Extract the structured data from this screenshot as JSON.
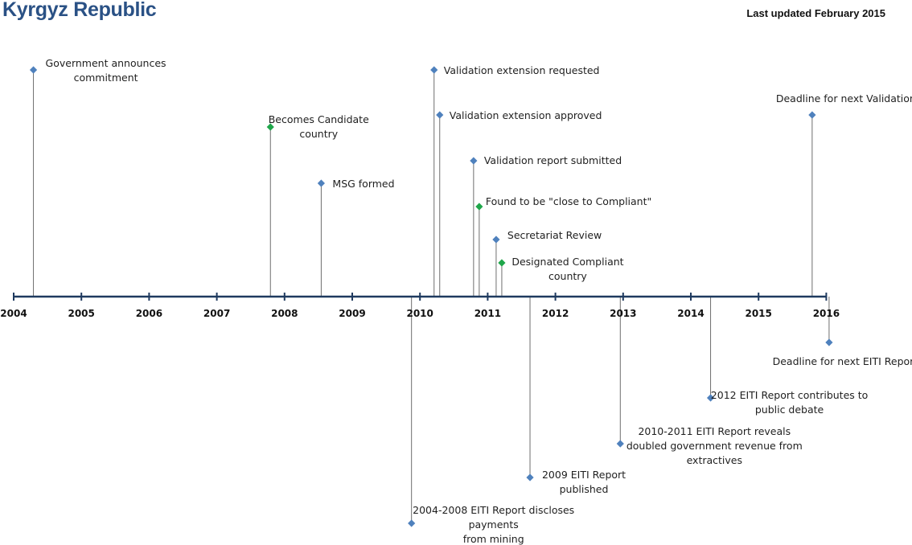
{
  "title": "Kyrgyz Republic",
  "last_updated": "Last updated February 2015",
  "colors": {
    "axis": "#1f3a5f",
    "stem": "#6e6e6e",
    "standard_event": "#4f81bd",
    "status_event": "#1fa64a",
    "title": "#2a5185"
  },
  "axis": {
    "years": [
      "2004",
      "2005",
      "2006",
      "2007",
      "2008",
      "2009",
      "2010",
      "2011",
      "2012",
      "2013",
      "2014",
      "2015",
      "2016"
    ]
  },
  "events": [
    {
      "id": "gov-commitment",
      "date": "2004-04",
      "side": "above",
      "level": 1,
      "kind": "standard",
      "label": [
        "Government announces",
        "commitment"
      ]
    },
    {
      "id": "candidate",
      "date": "2007-10",
      "side": "above",
      "level": 3,
      "kind": "status",
      "label": [
        "Becomes Candidate",
        "country"
      ]
    },
    {
      "id": "msg-formed",
      "date": "2008-07",
      "side": "above",
      "level": 5,
      "kind": "standard",
      "label": [
        "MSG formed"
      ]
    },
    {
      "id": "validation-ext-requested",
      "date": "2010-03",
      "side": "above",
      "level": 1,
      "kind": "standard",
      "label": [
        "Validation extension requested"
      ]
    },
    {
      "id": "validation-ext-approved",
      "date": "2010-04",
      "side": "above",
      "level": 2,
      "kind": "standard",
      "label": [
        "Validation extension approved"
      ]
    },
    {
      "id": "validation-report",
      "date": "2010-10",
      "side": "above",
      "level": 4,
      "kind": "standard",
      "label": [
        "Validation report submitted"
      ]
    },
    {
      "id": "close-compliant",
      "date": "2010-11",
      "side": "above",
      "level": 6,
      "kind": "status",
      "label": [
        "Found to be \"close to Compliant\""
      ]
    },
    {
      "id": "secretariat-review",
      "date": "2011-02",
      "side": "above",
      "level": 7,
      "kind": "standard",
      "label": [
        "Secretariat Review"
      ]
    },
    {
      "id": "designated-compliant",
      "date": "2011-03",
      "side": "above",
      "level": 8,
      "kind": "status",
      "label": [
        "Designated Compliant",
        "country"
      ]
    },
    {
      "id": "next-validation",
      "date": "2015-10",
      "side": "above",
      "level": 2,
      "kind": "standard",
      "label": [
        "Deadline for next Validation"
      ]
    },
    {
      "id": "report-2004-2008",
      "date": "2009-11",
      "side": "below",
      "level": 6,
      "kind": "standard",
      "label": [
        "2004-2008 EITI Report discloses",
        "payments",
        "from mining"
      ]
    },
    {
      "id": "report-2009",
      "date": "2011-08",
      "side": "below",
      "level": 5,
      "kind": "standard",
      "label": [
        "2009 EITI Report",
        "published"
      ]
    },
    {
      "id": "report-2010-2011",
      "date": "2012-12",
      "side": "below",
      "level": 4,
      "kind": "standard",
      "label": [
        "2010-2011 EITI Report reveals",
        "doubled government revenue from",
        "extractives"
      ]
    },
    {
      "id": "report-2012",
      "date": "2014-04",
      "side": "below",
      "level": 3,
      "kind": "standard",
      "label": [
        "2012 EITI Report contributes to",
        "public debate"
      ]
    },
    {
      "id": "next-eiti-report",
      "date": "2016-01",
      "side": "below",
      "level": 1,
      "kind": "standard",
      "label": [
        "Deadline for next EITI Report"
      ]
    }
  ]
}
